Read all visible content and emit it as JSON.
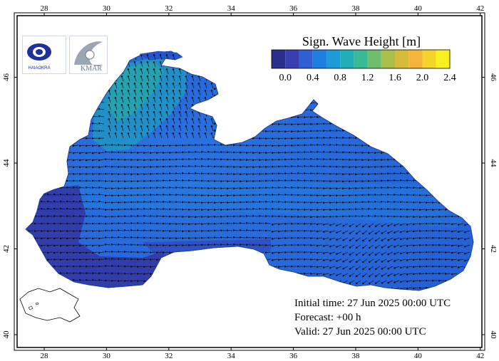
{
  "map": {
    "axes": {
      "x_ticks": [
        "28",
        "30",
        "32",
        "34",
        "36",
        "38",
        "40",
        "42"
      ],
      "y_ticks": [
        "40",
        "42",
        "44",
        "46"
      ]
    },
    "legend": {
      "title": "Sign. Wave Height [m]",
      "ticks": [
        "0.0",
        "0.4",
        "0.8",
        "1.2",
        "1.6",
        "2.0",
        "2.4"
      ],
      "colors": [
        "#2b2f8c",
        "#3a3fb0",
        "#2f5fd0",
        "#1e7fe0",
        "#1e9ad8",
        "#22aeb8",
        "#39b994",
        "#6ebe6d",
        "#a8bf4a",
        "#d6ba3b",
        "#f4b43a",
        "#f6d22c",
        "#f8f11f"
      ]
    },
    "info": {
      "initial_time": "Initial time: 27 Jun 2025 00:00 UTC",
      "forecast": "Forecast: +00 h",
      "valid": "Valid: 27 Jun 2025 00:00 UTC"
    },
    "logos": {
      "left_text": "HAIAOKRA",
      "right_text": "KMAR"
    }
  }
}
